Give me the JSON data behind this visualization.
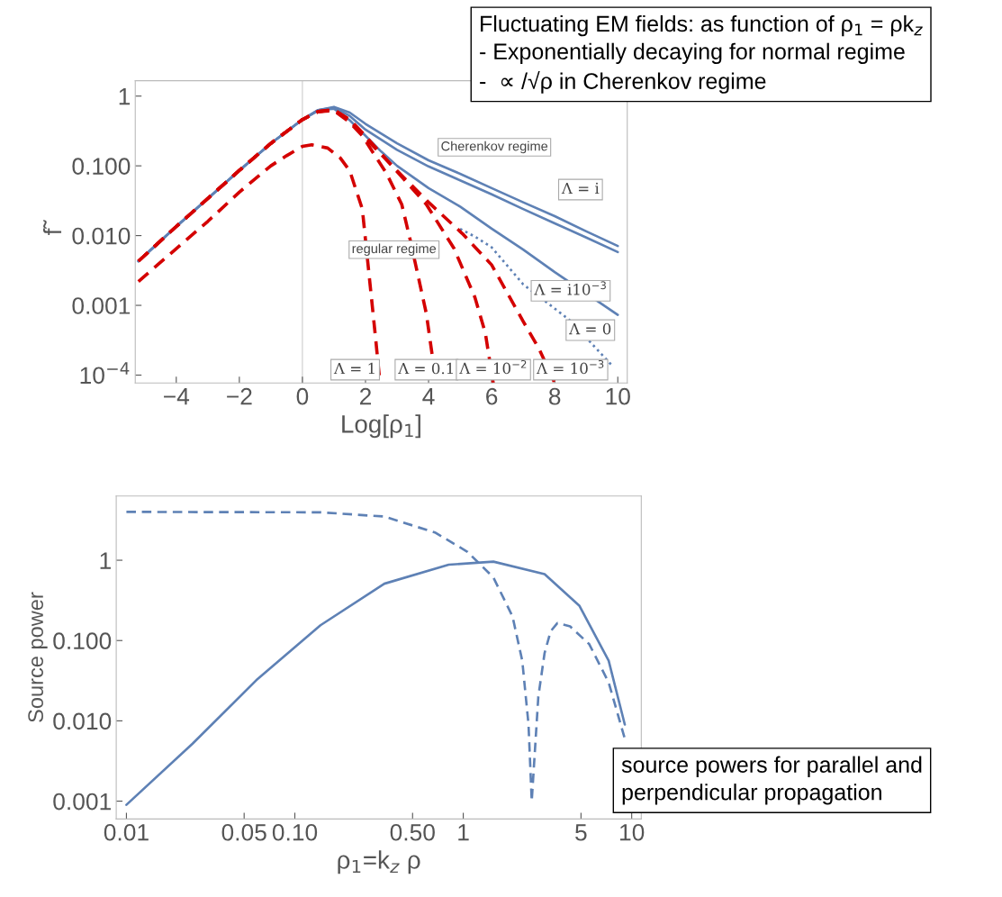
{
  "chart_data": [
    {
      "type": "line",
      "xlabel": "Log[ρ$_{1}$]",
      "ylabel": "f̃",
      "log": "y",
      "grid": false,
      "legend": false,
      "xlim": [
        -5.3,
        10.3
      ],
      "xticks": [
        {
          "value": -4,
          "label": "−4"
        },
        {
          "value": -2,
          "label": "−2"
        },
        0,
        2,
        4,
        6,
        8,
        10
      ],
      "ylim": [
        7.7e-05,
        1.66
      ],
      "yticks": [
        {
          "value": 0.0001,
          "label": "10$^{−4}$"
        },
        {
          "value": 0.001,
          "label": "0.001"
        },
        {
          "value": 0.01,
          "label": "0.010"
        },
        {
          "value": 0.1,
          "label": "0.100"
        },
        1
      ],
      "ref_lines": [
        {
          "axis": "x",
          "value": 0,
          "color": "#cccccc"
        }
      ],
      "series": [
        {
          "color": "#5e81b5",
          "line_style": "solid",
          "x": [
            -5.2,
            -4,
            -3,
            -2,
            -1,
            0,
            0.5,
            1,
            1.5,
            2,
            3,
            4,
            5,
            6,
            7,
            8,
            9,
            10
          ],
          "values": [
            0.0043,
            0.0135,
            0.034,
            0.086,
            0.21,
            0.46,
            0.63,
            0.7,
            0.58,
            0.4,
            0.21,
            0.12,
            0.077,
            0.048,
            0.03,
            0.019,
            0.0115,
            0.0071
          ]
        },
        {
          "color": "#5e81b5",
          "line_style": "solid",
          "x": [
            -5.2,
            -4,
            -3,
            -2,
            -1,
            0,
            0.5,
            1,
            1.5,
            2,
            3,
            4,
            5,
            6,
            7,
            8,
            9,
            10
          ],
          "values": [
            0.0043,
            0.0135,
            0.034,
            0.086,
            0.21,
            0.46,
            0.63,
            0.68,
            0.52,
            0.33,
            0.17,
            0.098,
            0.062,
            0.039,
            0.024,
            0.015,
            0.0094,
            0.0058
          ]
        },
        {
          "color": "#5e81b5",
          "line_style": "solid",
          "x": [
            -5.2,
            -4,
            -3,
            -2,
            -1,
            0,
            0.5,
            1,
            1.5,
            2,
            2.5,
            3,
            4,
            5,
            6,
            7,
            8,
            10
          ],
          "values": [
            0.0043,
            0.0135,
            0.034,
            0.086,
            0.21,
            0.46,
            0.62,
            0.66,
            0.45,
            0.27,
            0.16,
            0.1,
            0.048,
            0.026,
            0.0126,
            0.0063,
            0.003,
            0.00073
          ]
        },
        {
          "color": "#5e81b5",
          "line_style": "dotted",
          "x": [
            5,
            5.5,
            6,
            7,
            8,
            8.5,
            9.8
          ],
          "values": [
            0.0125,
            0.0095,
            0.0068,
            0.002,
            0.0009,
            0.0006,
            0.00014
          ]
        },
        {
          "color": "#d40000",
          "line_style": "dashed",
          "x": [
            -5.2,
            -4,
            -3,
            -2,
            -1,
            -0.5,
            0,
            0.3,
            0.8,
            1.2,
            1.5,
            1.9,
            2.15,
            2.32,
            2.46
          ],
          "values": [
            0.0022,
            0.0065,
            0.016,
            0.042,
            0.1,
            0.14,
            0.19,
            0.2,
            0.18,
            0.13,
            0.085,
            0.024,
            0.0019,
            0.00034,
            7.7e-05
          ]
        },
        {
          "color": "#d40000",
          "line_style": "dashed",
          "x": [
            -5.2,
            -4,
            -3,
            -2,
            -1,
            0,
            0.5,
            1,
            1.5,
            1.9,
            2.3,
            2.66,
            3.15,
            3.41,
            3.93,
            4.24
          ],
          "values": [
            0.0043,
            0.0135,
            0.034,
            0.086,
            0.21,
            0.46,
            0.6,
            0.62,
            0.42,
            0.27,
            0.14,
            0.079,
            0.028,
            0.009,
            0.00076,
            7.7e-05
          ]
        },
        {
          "color": "#d40000",
          "line_style": "dashed",
          "x": [
            -5.2,
            -4,
            -3,
            -2,
            -1,
            0,
            0.5,
            1,
            1.5,
            1.9,
            2.9,
            3.93,
            4.81,
            5.47,
            5.8,
            6.05
          ],
          "values": [
            0.0043,
            0.0135,
            0.034,
            0.086,
            0.21,
            0.46,
            0.6,
            0.63,
            0.46,
            0.3,
            0.093,
            0.028,
            0.0065,
            0.0013,
            0.0004,
            7.7e-05
          ]
        },
        {
          "color": "#d40000",
          "line_style": "dashed",
          "x": [
            -5.2,
            -4,
            -3,
            -2,
            -1,
            0,
            0.5,
            1,
            1.5,
            2,
            3,
            4,
            5.07,
            6,
            7,
            7.5,
            8.0
          ],
          "values": [
            0.0043,
            0.0135,
            0.034,
            0.086,
            0.21,
            0.46,
            0.6,
            0.64,
            0.45,
            0.25,
            0.085,
            0.03,
            0.0107,
            0.0038,
            0.00059,
            0.00024,
            7.7e-05
          ]
        }
      ],
      "annotations": [
        "Fluctuating EM fields: as function of ρ$_{1}$ = ρk$_{z}$\n- Exponentially decaying for normal regime\n-  ∝ /√ρ in Cherenkov regime",
        "Cherenkov regime",
        "regular regime",
        "Λ = i",
        "Λ = i10$^{−3}$",
        "Λ = 0",
        "Λ = 1",
        "Λ = 0.1",
        "Λ = 10$^{−2}$",
        "Λ = 10$^{−3}$"
      ]
    },
    {
      "type": "line",
      "xlabel": "ρ$_{1}$=k$_{z}$ ρ",
      "ylabel": "Source power",
      "log": "xy",
      "grid": false,
      "legend": false,
      "xlim": [
        0.0087,
        11.4
      ],
      "xticks": [
        0.01,
        0.05,
        {
          "value": 0.1,
          "label": "0.10"
        },
        {
          "value": 0.5,
          "label": "0.50"
        },
        1,
        5,
        10
      ],
      "ylim": [
        0.0006,
        6.3
      ],
      "yticks": [
        {
          "value": 0.001,
          "label": "0.001"
        },
        {
          "value": 0.01,
          "label": "0.010"
        },
        {
          "value": 0.1,
          "label": "0.100"
        },
        1
      ],
      "series": [
        {
          "color": "#5e81b5",
          "line_style": "solid",
          "x": [
            0.01,
            0.0247,
            0.059,
            0.142,
            0.34,
            0.82,
            1.51,
            3.04,
            4.9,
            7.3,
            9.1
          ],
          "values": [
            0.0009,
            0.0052,
            0.032,
            0.155,
            0.51,
            0.88,
            0.96,
            0.67,
            0.27,
            0.056,
            0.009
          ]
        },
        {
          "color": "#5e81b5",
          "line_style": "dashed",
          "x": [
            0.01,
            0.142,
            0.34,
            0.685,
            1.06,
            1.51,
            1.96,
            2.24,
            2.44,
            2.55,
            2.79,
            3.04,
            3.3,
            3.62,
            4.31,
            5.6,
            7.3,
            9.1
          ],
          "values": [
            4.0,
            3.95,
            3.5,
            2.2,
            1.27,
            0.61,
            0.2,
            0.056,
            0.009,
            0.001,
            0.02,
            0.07,
            0.13,
            0.165,
            0.15,
            0.09,
            0.03,
            0.006
          ]
        }
      ],
      "annotations": [
        "source powers for parallel and\nperpendicular propagation"
      ]
    }
  ]
}
